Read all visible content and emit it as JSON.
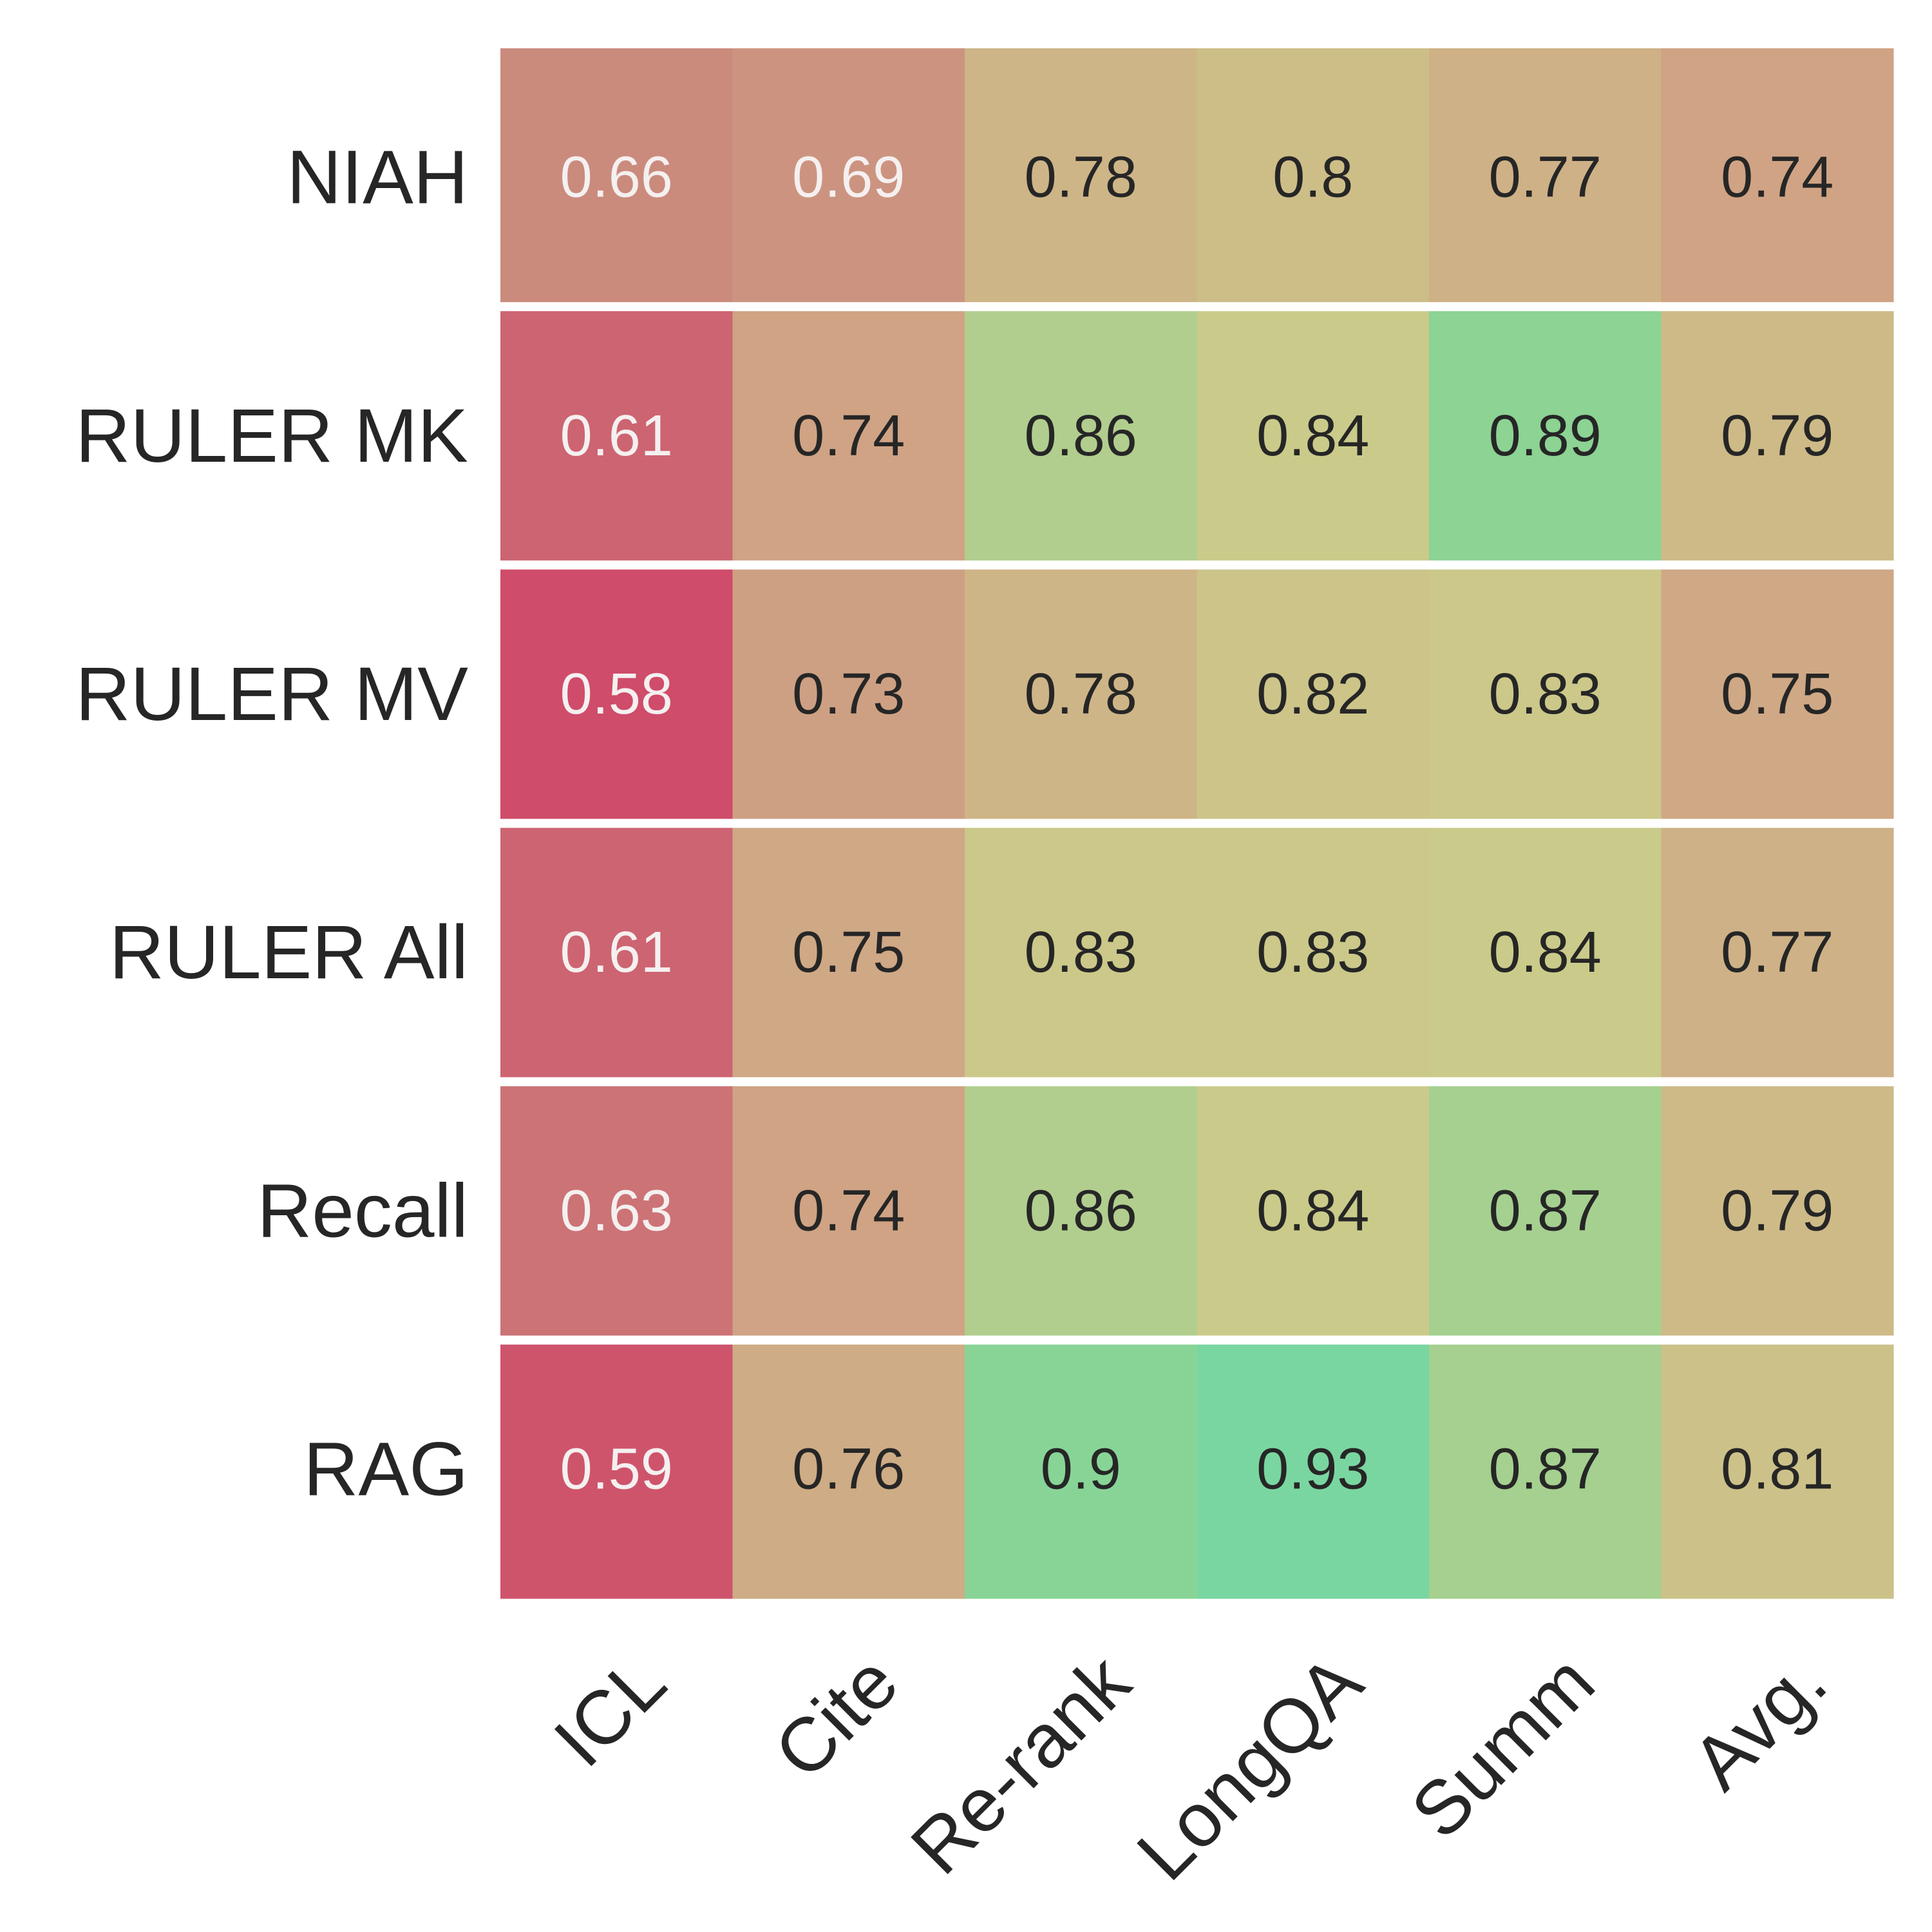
{
  "chart_data": {
    "type": "heatmap",
    "title": "",
    "xlabel": "",
    "ylabel": "",
    "rows": [
      "NIAH",
      "RULER MK",
      "RULER MV",
      "RULER All",
      "Recall",
      "RAG"
    ],
    "columns": [
      "ICL",
      "Cite",
      "Re-rank",
      "LongQA",
      "Summ",
      "Avg."
    ],
    "values": [
      [
        0.66,
        0.69,
        0.78,
        0.8,
        0.77,
        0.74
      ],
      [
        0.61,
        0.74,
        0.86,
        0.84,
        0.89,
        0.79
      ],
      [
        0.58,
        0.73,
        0.78,
        0.82,
        0.83,
        0.75
      ],
      [
        0.61,
        0.75,
        0.83,
        0.83,
        0.84,
        0.77
      ],
      [
        0.63,
        0.74,
        0.86,
        0.84,
        0.87,
        0.79
      ],
      [
        0.59,
        0.76,
        0.9,
        0.93,
        0.87,
        0.81
      ]
    ],
    "value_labels": [
      [
        "0.66",
        "0.69",
        "0.78",
        "0.8",
        "0.77",
        "0.74"
      ],
      [
        "0.61",
        "0.74",
        "0.86",
        "0.84",
        "0.89",
        "0.79"
      ],
      [
        "0.58",
        "0.73",
        "0.78",
        "0.82",
        "0.83",
        "0.75"
      ],
      [
        "0.61",
        "0.75",
        "0.83",
        "0.83",
        "0.84",
        "0.77"
      ],
      [
        "0.63",
        "0.74",
        "0.86",
        "0.84",
        "0.87",
        "0.79"
      ],
      [
        "0.59",
        "0.76",
        "0.9",
        "0.93",
        "0.87",
        "0.81"
      ]
    ],
    "colorscale": {
      "min": 0.58,
      "max": 0.93,
      "stops": [
        {
          "value": 0.58,
          "color": "#cf4c6a"
        },
        {
          "value": 0.66,
          "color": "#ca8b7d"
        },
        {
          "value": 0.74,
          "color": "#cfa384"
        },
        {
          "value": 0.8,
          "color": "#cdbe88"
        },
        {
          "value": 0.84,
          "color": "#cacb8a"
        },
        {
          "value": 0.89,
          "color": "#8cd394"
        },
        {
          "value": 0.93,
          "color": "#7ad6a0"
        }
      ]
    },
    "label_colors": {
      "light": "#f5f0f0",
      "dark": "#262626",
      "light_below": 0.7
    },
    "row_separator_color": "#ffffff",
    "colorbar": false,
    "grid": false
  }
}
